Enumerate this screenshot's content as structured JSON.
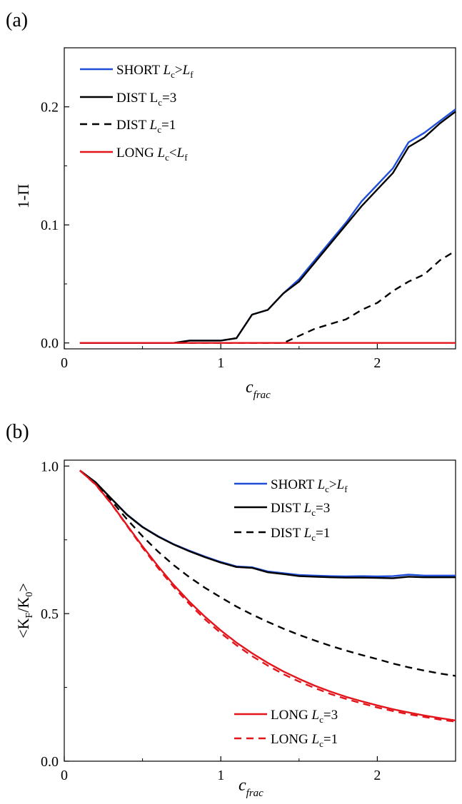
{
  "panels": [
    {
      "label": "(a)",
      "ylabel": "1-Π",
      "xlabel_main": "c",
      "xlabel_sub": "frac"
    },
    {
      "label": "(b)",
      "ylabel_parts": [
        "<K",
        "F",
        "/K",
        "0",
        ">"
      ],
      "xlabel_main": "c",
      "xlabel_sub": "frac"
    }
  ],
  "chart_data": [
    {
      "type": "line",
      "panel_label": "(a)",
      "xlabel": "c_frac",
      "ylabel": "1-Π",
      "xlim": [
        0,
        2.5
      ],
      "ylim": [
        -0.005,
        0.25
      ],
      "xticks": [
        0,
        1,
        2
      ],
      "xtick_labels": [
        "0",
        "1",
        "2"
      ],
      "yticks": [
        0.0,
        0.1,
        0.2
      ],
      "ytick_labels": [
        "0.0",
        "0.1",
        "0.2"
      ],
      "grid": false,
      "legend_position": "top-left",
      "series": [
        {
          "name": "SHORT Lc>Lf",
          "legend_parts": [
            [
              "SHORT ",
              "n"
            ],
            [
              "L",
              "i"
            ],
            [
              "c",
              "sub"
            ],
            [
              ">",
              "n"
            ],
            [
              "L",
              "i"
            ],
            [
              "f",
              "sub"
            ]
          ],
          "color": "#1f4fd8",
          "dash": "solid",
          "x": [
            0.1,
            0.2,
            0.3,
            0.4,
            0.5,
            0.6,
            0.7,
            0.8,
            0.9,
            1.0,
            1.1,
            1.2,
            1.3,
            1.4,
            1.5,
            1.6,
            1.7,
            1.8,
            1.9,
            2.0,
            2.1,
            2.2,
            2.3,
            2.4,
            2.5
          ],
          "y": [
            0,
            0,
            0,
            0,
            0,
            0,
            0,
            0.002,
            0.002,
            0.002,
            0.004,
            0.024,
            0.028,
            0.042,
            0.054,
            0.07,
            0.086,
            0.102,
            0.12,
            0.134,
            0.148,
            0.17,
            0.178,
            0.188,
            0.198
          ]
        },
        {
          "name": "DIST Lc=3",
          "legend_parts": [
            [
              "DIST L",
              "n"
            ],
            [
              "c",
              "sub"
            ],
            [
              "=3",
              "n"
            ]
          ],
          "color": "#000000",
          "dash": "solid",
          "x": [
            0.1,
            0.2,
            0.3,
            0.4,
            0.5,
            0.6,
            0.7,
            0.8,
            0.9,
            1.0,
            1.1,
            1.2,
            1.3,
            1.4,
            1.5,
            1.6,
            1.7,
            1.8,
            1.9,
            2.0,
            2.1,
            2.2,
            2.3,
            2.4,
            2.5
          ],
          "y": [
            0,
            0,
            0,
            0,
            0,
            0,
            0,
            0.002,
            0.002,
            0.002,
            0.004,
            0.024,
            0.028,
            0.042,
            0.052,
            0.068,
            0.084,
            0.1,
            0.116,
            0.13,
            0.144,
            0.166,
            0.174,
            0.186,
            0.196
          ]
        },
        {
          "name": "DIST Lc=1",
          "legend_parts": [
            [
              "DIST ",
              "n"
            ],
            [
              "L",
              "i"
            ],
            [
              "c",
              "sub"
            ],
            [
              "=1",
              "n"
            ]
          ],
          "color": "#000000",
          "dash": "dashed",
          "x": [
            0.1,
            0.5,
            1.0,
            1.4,
            1.5,
            1.6,
            1.7,
            1.8,
            1.9,
            2.0,
            2.1,
            2.2,
            2.3,
            2.4,
            2.5
          ],
          "y": [
            0,
            0,
            0,
            0,
            0.006,
            0.012,
            0.016,
            0.02,
            0.028,
            0.034,
            0.044,
            0.052,
            0.058,
            0.07,
            0.078
          ]
        },
        {
          "name": "LONG Lc<Lf",
          "legend_parts": [
            [
              "LONG ",
              "n"
            ],
            [
              "L",
              "i"
            ],
            [
              "c",
              "sub"
            ],
            [
              "<",
              "n"
            ],
            [
              "L",
              "i"
            ],
            [
              "f",
              "sub"
            ]
          ],
          "color": "#e4141b",
          "dash": "solid",
          "x": [
            0.1,
            2.5
          ],
          "y": [
            0,
            0
          ]
        }
      ]
    },
    {
      "type": "line",
      "panel_label": "(b)",
      "xlabel": "c_frac",
      "ylabel": "<K_F/K_0>",
      "xlim": [
        0,
        2.5
      ],
      "ylim": [
        0,
        1.02
      ],
      "xticks": [
        0,
        1,
        2
      ],
      "xtick_labels": [
        "0",
        "1",
        "2"
      ],
      "yticks": [
        0.0,
        0.5,
        1.0
      ],
      "ytick_labels": [
        "0.0",
        "0.5",
        "1.0"
      ],
      "grid": false,
      "legend_position": "top-right and bottom-right",
      "series": [
        {
          "name": "SHORT Lc>Lf",
          "legend_parts": [
            [
              "SHORT ",
              "n"
            ],
            [
              "L",
              "i"
            ],
            [
              "c",
              "sub"
            ],
            [
              ">",
              "n"
            ],
            [
              "L",
              "i"
            ],
            [
              "f",
              "sub"
            ]
          ],
          "color": "#1f4fd8",
          "dash": "solid",
          "x": [
            0.1,
            0.2,
            0.3,
            0.4,
            0.5,
            0.6,
            0.7,
            0.8,
            0.9,
            1.0,
            1.1,
            1.2,
            1.3,
            1.4,
            1.5,
            1.6,
            1.7,
            1.8,
            1.9,
            2.0,
            2.1,
            2.2,
            2.3,
            2.4,
            2.5
          ],
          "y": [
            0.985,
            0.945,
            0.89,
            0.836,
            0.794,
            0.762,
            0.735,
            0.713,
            0.693,
            0.675,
            0.66,
            0.657,
            0.643,
            0.637,
            0.631,
            0.629,
            0.627,
            0.626,
            0.627,
            0.626,
            0.627,
            0.632,
            0.629,
            0.629,
            0.629
          ]
        },
        {
          "name": "DIST Lc=3",
          "legend_parts": [
            [
              "DIST ",
              "n"
            ],
            [
              "L",
              "i"
            ],
            [
              "c",
              "sub"
            ],
            [
              "=3",
              "n"
            ]
          ],
          "color": "#000000",
          "dash": "solid",
          "x": [
            0.1,
            0.2,
            0.3,
            0.4,
            0.5,
            0.6,
            0.7,
            0.8,
            0.9,
            1.0,
            1.1,
            1.2,
            1.3,
            1.4,
            1.5,
            1.6,
            1.7,
            1.8,
            1.9,
            2.0,
            2.1,
            2.2,
            2.3,
            2.4,
            2.5
          ],
          "y": [
            0.985,
            0.945,
            0.89,
            0.835,
            0.793,
            0.761,
            0.734,
            0.711,
            0.691,
            0.673,
            0.658,
            0.655,
            0.64,
            0.634,
            0.627,
            0.625,
            0.623,
            0.622,
            0.622,
            0.621,
            0.62,
            0.625,
            0.623,
            0.623,
            0.623
          ]
        },
        {
          "name": "DIST Lc=1",
          "legend_parts": [
            [
              "DIST ",
              "n"
            ],
            [
              "L",
              "i"
            ],
            [
              "c",
              "sub"
            ],
            [
              "=1",
              "n"
            ]
          ],
          "color": "#000000",
          "dash": "dashed",
          "x": [
            0.1,
            0.2,
            0.3,
            0.4,
            0.5,
            0.6,
            0.7,
            0.8,
            0.9,
            1.0,
            1.1,
            1.2,
            1.3,
            1.4,
            1.5,
            1.6,
            1.7,
            1.8,
            1.9,
            2.0,
            2.1,
            2.2,
            2.3,
            2.4,
            2.5
          ],
          "y": [
            0.985,
            0.942,
            0.883,
            0.82,
            0.762,
            0.71,
            0.664,
            0.623,
            0.587,
            0.555,
            0.524,
            0.497,
            0.472,
            0.449,
            0.428,
            0.409,
            0.391,
            0.375,
            0.36,
            0.346,
            0.331,
            0.318,
            0.307,
            0.297,
            0.289
          ]
        },
        {
          "name": "LONG Lc=3",
          "legend_parts": [
            [
              "LONG ",
              "n"
            ],
            [
              "L",
              "i"
            ],
            [
              "c",
              "sub"
            ],
            [
              "=3",
              "n"
            ]
          ],
          "color": "#e4141b",
          "dash": "solid",
          "x": [
            0.1,
            0.2,
            0.3,
            0.4,
            0.5,
            0.6,
            0.7,
            0.8,
            0.9,
            1.0,
            1.1,
            1.2,
            1.3,
            1.4,
            1.5,
            1.6,
            1.7,
            1.8,
            1.9,
            2.0,
            2.1,
            2.2,
            2.3,
            2.4,
            2.5
          ],
          "y": [
            0.985,
            0.938,
            0.873,
            0.8,
            0.728,
            0.66,
            0.597,
            0.54,
            0.489,
            0.443,
            0.402,
            0.366,
            0.333,
            0.304,
            0.279,
            0.256,
            0.236,
            0.218,
            0.203,
            0.189,
            0.176,
            0.165,
            0.155,
            0.146,
            0.138
          ]
        },
        {
          "name": "LONG Lc=1",
          "legend_parts": [
            [
              "LONG ",
              "n"
            ],
            [
              "L",
              "i"
            ],
            [
              "c",
              "sub"
            ],
            [
              "=1",
              "n"
            ]
          ],
          "color": "#e4141b",
          "dash": "dashed",
          "x": [
            0.1,
            0.2,
            0.3,
            0.4,
            0.5,
            0.6,
            0.7,
            0.8,
            0.9,
            1.0,
            1.1,
            1.2,
            1.3,
            1.4,
            1.5,
            1.6,
            1.7,
            1.8,
            1.9,
            2.0,
            2.1,
            2.2,
            2.3,
            2.4,
            2.5
          ],
          "y": [
            0.985,
            0.937,
            0.872,
            0.798,
            0.724,
            0.654,
            0.59,
            0.532,
            0.48,
            0.434,
            0.393,
            0.356,
            0.324,
            0.295,
            0.27,
            0.248,
            0.228,
            0.211,
            0.196,
            0.182,
            0.17,
            0.159,
            0.15,
            0.141,
            0.134
          ]
        }
      ]
    }
  ]
}
